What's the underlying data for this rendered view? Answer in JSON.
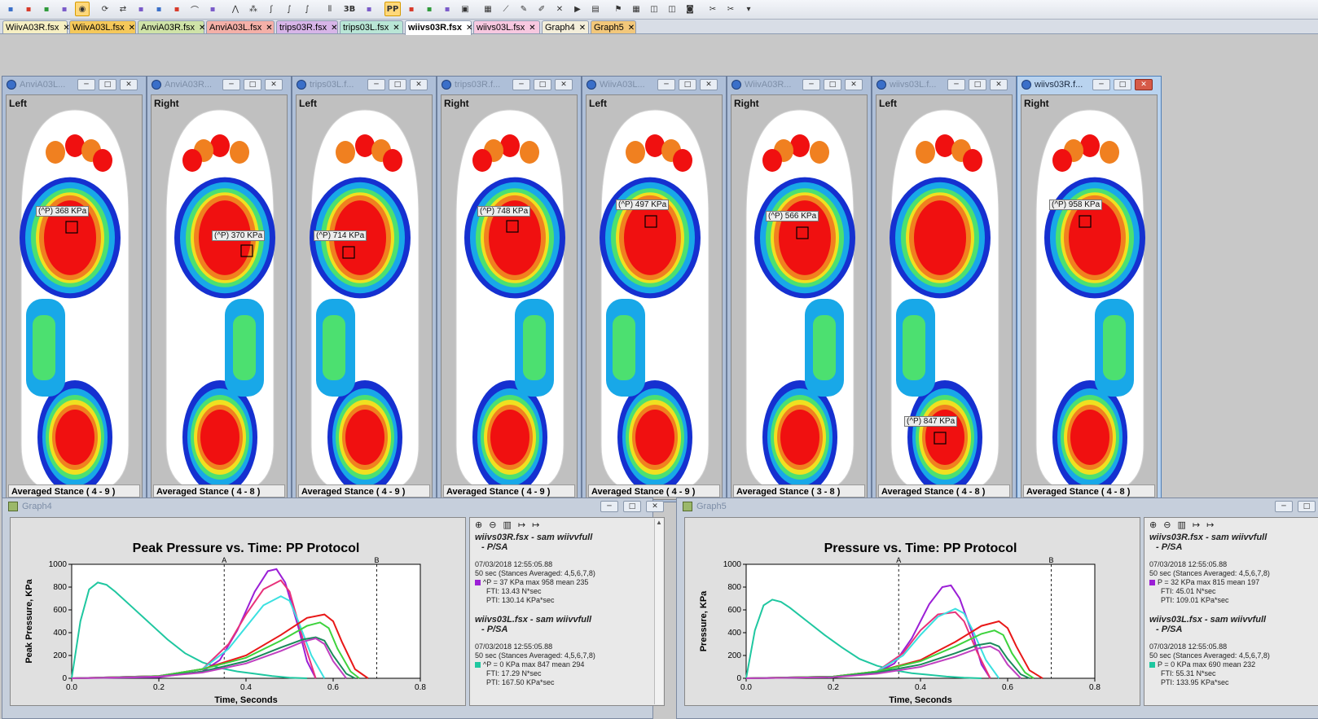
{
  "toolbar": {
    "icons": [
      "layout-icon",
      "grid-icon",
      "grid2-icon",
      "frame-icon",
      "color-icon",
      "refresh-icon",
      "swap-icon",
      "abc1-icon",
      "abc2-icon",
      "pin-icon",
      "curve-icon",
      "draw-icon",
      "peak-icon",
      "scatter-icon",
      "foot-icon",
      "integral-icon",
      "integral-p-icon",
      "bars-icon",
      "3b-icon",
      "3b-stack-icon",
      "pp-icon",
      "pp2-icon",
      "pp3-icon",
      "pp-doc-icon",
      "report-icon",
      "grid-color-icon",
      "line-chart-icon",
      "pen-icon",
      "pencil-icon",
      "cross-icon",
      "video-icon",
      "print-icon",
      "flag-icon",
      "table-icon",
      "split-icon",
      "split2-icon",
      "camera-icon",
      "cut-icon",
      "scissors-icon",
      "menu-icon"
    ],
    "labels": {
      "3b": "3B",
      "pp": "PP"
    }
  },
  "tabs": [
    {
      "label": "WiivA03R.fsx",
      "color": "#f6efc3",
      "active": false
    },
    {
      "label": "WiivA03L.fsx",
      "color": "#f5c85a",
      "active": false
    },
    {
      "label": "AnviA03R.fsx",
      "color": "#cfe3a8",
      "active": false
    },
    {
      "label": "AnviA03L.fsx",
      "color": "#f4b0a8",
      "active": false
    },
    {
      "label": "trips03R.fsx",
      "color": "#d7b5e8",
      "active": false
    },
    {
      "label": "trips03L.fsx",
      "color": "#b9e6d6",
      "active": false
    },
    {
      "label": "wiivs03R.fsx",
      "color": "#ffffff",
      "active": true
    },
    {
      "label": "wiivs03L.fsx",
      "color": "#f7c8e0",
      "active": false
    },
    {
      "label": "Graph4",
      "color": "#f3eeda",
      "active": false
    },
    {
      "label": "Graph5",
      "color": "#f2c77a",
      "active": false
    }
  ],
  "feet": [
    {
      "title": "AnviA03L...",
      "side": "Left",
      "peak": "(^P) 368 KPa",
      "stance": "Averaged Stance ( 4 - 9 )",
      "active": false
    },
    {
      "title": "AnviA03R...",
      "side": "Right",
      "peak": "(^P) 370 KPa",
      "stance": "Averaged Stance ( 4 - 8 )",
      "active": false
    },
    {
      "title": "trips03L.f...",
      "side": "Left",
      "peak": "(^P) 714 KPa",
      "stance": "Averaged Stance ( 4 - 9 )",
      "active": false
    },
    {
      "title": "trips03R.f...",
      "side": "Right",
      "peak": "(^P) 748 KPa",
      "stance": "Averaged Stance ( 4 - 9 )",
      "active": false
    },
    {
      "title": "WiivA03L...",
      "side": "Left",
      "peak": "(^P) 497 KPa",
      "stance": "Averaged Stance ( 4 - 9 )",
      "active": false
    },
    {
      "title": "WiivA03R...",
      "side": "Right",
      "peak": "(^P) 566 KPa",
      "stance": "Averaged Stance ( 3 - 8 )",
      "active": false
    },
    {
      "title": "wiivs03L.f...",
      "side": "Left",
      "peak": "(^P) 847 KPa",
      "stance": "Averaged Stance ( 4 - 8 )",
      "active": false
    },
    {
      "title": "wiivs03R.f...",
      "side": "Right",
      "peak": "(^P) 958 KPa",
      "stance": "Averaged Stance ( 4 - 8 )",
      "active": true
    }
  ],
  "graphs": [
    {
      "window_title": "Graph4",
      "info": {
        "icons": [
          "zoom-in-icon",
          "zoom-out-icon",
          "bar-icon",
          "cursor-a-icon",
          "cursor-b-icon"
        ],
        "blocks": [
          {
            "file": "wiivs03R.fsx - sam  wiivvfull",
            "sub": "- P/SA",
            "date": "07/03/2018 12:55:05.88",
            "avg": "50 sec (Stances Averaged: 4,5,6,7,8)",
            "color": "#9b1fd6",
            "stat": "^P = 37 KPa max 958 mean 235",
            "fti": "FTI:  13.43 N*sec",
            "pti": "PTI:  130.14 KPa*sec"
          },
          {
            "file": "wiivs03L.fsx - sam  wiivvfull",
            "sub": "- P/SA",
            "date": "07/03/2018 12:55:05.88",
            "avg": "50 sec (Stances Averaged: 4,5,6,7,8)",
            "color": "#1fc7a0",
            "stat": "^P = 0 KPa max 847 mean 294",
            "fti": "FTI:  17.29 N*sec",
            "pti": "PTI:  167.50 KPa*sec"
          }
        ]
      }
    },
    {
      "window_title": "Graph5",
      "info": {
        "icons": [
          "zoom-in-icon",
          "zoom-out-icon",
          "bar-icon",
          "cursor-a-icon",
          "cursor-b-icon"
        ],
        "blocks": [
          {
            "file": "wiivs03R.fsx - sam  wiivvfull",
            "sub": "- P/SA",
            "date": "07/03/2018 12:55:05.88",
            "avg": "50 sec (Stances Averaged: 4,5,6,7,8)",
            "color": "#9b1fd6",
            "stat": "P = 32 KPa max 815 mean 197",
            "fti": "FTI:  45.01 N*sec",
            "pti": "PTI:  109.01 KPa*sec"
          },
          {
            "file": "wiivs03L.fsx - sam  wiivvfull",
            "sub": "- P/SA",
            "date": "07/03/2018 12:55:05.88",
            "avg": "50 sec (Stances Averaged: 4,5,6,7,8)",
            "color": "#1fc7a0",
            "stat": "P = 0 KPa max 690 mean 232",
            "fti": "FTI:  55.31 N*sec",
            "pti": "PTI:  133.95 KPa*sec"
          }
        ]
      }
    }
  ],
  "chart_data": [
    {
      "type": "line",
      "title": "Peak Pressure vs. Time: PP Protocol",
      "xlabel": "Time, Seconds",
      "ylabel": "Peak Pressure, KPa",
      "xlim": [
        0,
        0.8
      ],
      "ylim": [
        0,
        1000
      ],
      "xticks": [
        "0.0",
        "0.2",
        "0.4",
        "0.6",
        "0.8"
      ],
      "yticks": [
        "0",
        "200",
        "400",
        "600",
        "800",
        "1000"
      ],
      "markers": [
        {
          "label": "A",
          "x": 0.35
        },
        {
          "label": "B",
          "x": 0.7
        }
      ],
      "series": [
        {
          "color": "#1fc7a0",
          "x": [
            0,
            0.02,
            0.04,
            0.06,
            0.08,
            0.1,
            0.14,
            0.18,
            0.22,
            0.26,
            0.3,
            0.34,
            0.38,
            0.42,
            0.46,
            0.5,
            0.54
          ],
          "y": [
            0,
            500,
            780,
            840,
            820,
            760,
            620,
            480,
            340,
            220,
            140,
            90,
            60,
            40,
            20,
            5,
            0
          ]
        },
        {
          "color": "#9b1fd6",
          "x": [
            0,
            0.2,
            0.3,
            0.34,
            0.38,
            0.42,
            0.45,
            0.47,
            0.49,
            0.52,
            0.54,
            0.56
          ],
          "y": [
            0,
            10,
            60,
            160,
            420,
            760,
            940,
            958,
            840,
            450,
            150,
            0
          ]
        },
        {
          "color": "#e8327a",
          "x": [
            0,
            0.2,
            0.3,
            0.36,
            0.4,
            0.44,
            0.48,
            0.5,
            0.53,
            0.56
          ],
          "y": [
            0,
            20,
            80,
            300,
            560,
            780,
            860,
            760,
            350,
            0
          ]
        },
        {
          "color": "#3be0e0",
          "x": [
            0,
            0.2,
            0.3,
            0.36,
            0.4,
            0.44,
            0.48,
            0.5,
            0.52,
            0.55,
            0.58
          ],
          "y": [
            0,
            20,
            80,
            260,
            450,
            640,
            720,
            680,
            500,
            200,
            0
          ]
        },
        {
          "color": "#e81818",
          "x": [
            0,
            0.2,
            0.3,
            0.4,
            0.48,
            0.54,
            0.58,
            0.6,
            0.62,
            0.65,
            0.68
          ],
          "y": [
            0,
            20,
            80,
            200,
            380,
            530,
            560,
            500,
            320,
            80,
            0
          ]
        },
        {
          "color": "#3dd33d",
          "x": [
            0,
            0.2,
            0.3,
            0.4,
            0.48,
            0.54,
            0.57,
            0.59,
            0.61,
            0.64,
            0.66
          ],
          "y": [
            0,
            20,
            80,
            180,
            330,
            460,
            490,
            440,
            260,
            60,
            0
          ]
        },
        {
          "color": "#1a8a5a",
          "x": [
            0,
            0.2,
            0.3,
            0.4,
            0.48,
            0.53,
            0.56,
            0.58,
            0.6,
            0.63,
            0.65
          ],
          "y": [
            0,
            15,
            60,
            150,
            270,
            340,
            360,
            330,
            200,
            40,
            0
          ]
        },
        {
          "color": "#c040c0",
          "x": [
            0,
            0.2,
            0.3,
            0.4,
            0.48,
            0.53,
            0.56,
            0.58,
            0.6,
            0.63
          ],
          "y": [
            0,
            15,
            50,
            130,
            240,
            320,
            350,
            300,
            150,
            0
          ]
        }
      ]
    },
    {
      "type": "line",
      "title": "Pressure vs. Time: PP Protocol",
      "xlabel": "Time, Seconds",
      "ylabel": "Pressure, KPa",
      "xlim": [
        0,
        0.8
      ],
      "ylim": [
        0,
        1000
      ],
      "xticks": [
        "0.0",
        "0.2",
        "0.4",
        "0.6",
        "0.8"
      ],
      "yticks": [
        "0",
        "200",
        "400",
        "600",
        "800",
        "1000"
      ],
      "markers": [
        {
          "label": "A",
          "x": 0.35
        },
        {
          "label": "B",
          "x": 0.7
        }
      ],
      "series": [
        {
          "color": "#1fc7a0",
          "x": [
            0,
            0.02,
            0.04,
            0.06,
            0.08,
            0.1,
            0.14,
            0.18,
            0.22,
            0.26,
            0.3,
            0.34,
            0.38,
            0.42,
            0.46,
            0.5,
            0.54
          ],
          "y": [
            0,
            420,
            640,
            690,
            670,
            620,
            500,
            380,
            270,
            170,
            110,
            70,
            45,
            30,
            15,
            5,
            0
          ]
        },
        {
          "color": "#9b1fd6",
          "x": [
            0,
            0.2,
            0.3,
            0.34,
            0.38,
            0.42,
            0.45,
            0.47,
            0.49,
            0.52,
            0.54,
            0.56
          ],
          "y": [
            0,
            10,
            50,
            130,
            350,
            650,
            800,
            815,
            700,
            380,
            120,
            0
          ]
        },
        {
          "color": "#e8327a",
          "x": [
            0,
            0.2,
            0.3,
            0.36,
            0.4,
            0.44,
            0.48,
            0.5,
            0.53,
            0.56
          ],
          "y": [
            0,
            15,
            60,
            220,
            420,
            560,
            580,
            500,
            230,
            0
          ]
        },
        {
          "color": "#3be0e0",
          "x": [
            0,
            0.2,
            0.3,
            0.36,
            0.4,
            0.44,
            0.48,
            0.5,
            0.52,
            0.55,
            0.58
          ],
          "y": [
            0,
            15,
            60,
            200,
            380,
            540,
            610,
            570,
            420,
            160,
            0
          ]
        },
        {
          "color": "#e81818",
          "x": [
            0,
            0.2,
            0.3,
            0.4,
            0.48,
            0.54,
            0.58,
            0.6,
            0.62,
            0.65,
            0.68
          ],
          "y": [
            0,
            15,
            60,
            160,
            320,
            460,
            500,
            440,
            280,
            70,
            0
          ]
        },
        {
          "color": "#3dd33d",
          "x": [
            0,
            0.2,
            0.3,
            0.4,
            0.48,
            0.54,
            0.57,
            0.59,
            0.61,
            0.64,
            0.66
          ],
          "y": [
            0,
            15,
            60,
            150,
            280,
            390,
            420,
            380,
            220,
            50,
            0
          ]
        },
        {
          "color": "#1a8a5a",
          "x": [
            0,
            0.2,
            0.3,
            0.4,
            0.48,
            0.53,
            0.56,
            0.58,
            0.6,
            0.63,
            0.65
          ],
          "y": [
            0,
            10,
            50,
            120,
            220,
            290,
            310,
            280,
            170,
            35,
            0
          ]
        },
        {
          "color": "#c040c0",
          "x": [
            0,
            0.2,
            0.3,
            0.4,
            0.48,
            0.53,
            0.56,
            0.58,
            0.6,
            0.63
          ],
          "y": [
            0,
            10,
            40,
            100,
            190,
            260,
            280,
            240,
            120,
            0
          ]
        }
      ]
    }
  ]
}
